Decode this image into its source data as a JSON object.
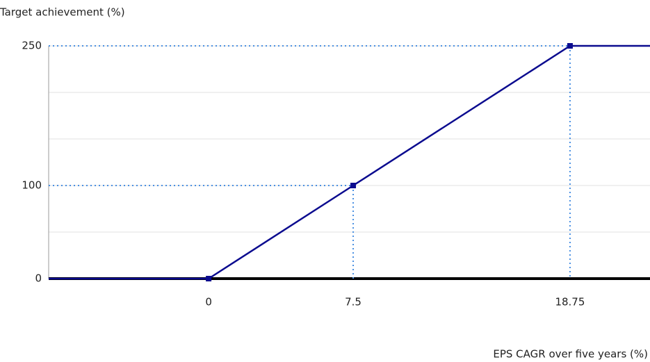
{
  "chart_data": {
    "type": "line",
    "title": "Target achievement (%)",
    "x_label": "EPS CAGR over five years (%)",
    "xlim": [
      -8.3,
      22.9
    ],
    "xticks": [
      0,
      7.5,
      18.75
    ],
    "ylim": [
      0,
      250
    ],
    "yticks": [
      0,
      100,
      250
    ],
    "ygrid": [
      50,
      150,
      200
    ],
    "series": [
      {
        "color": "#0b0b8f",
        "x": [
          -8.3,
          0,
          7.5,
          18.75,
          22.9
        ],
        "values": [
          0,
          0,
          100,
          250,
          250
        ]
      }
    ],
    "reference_color": "#4a90e2"
  }
}
